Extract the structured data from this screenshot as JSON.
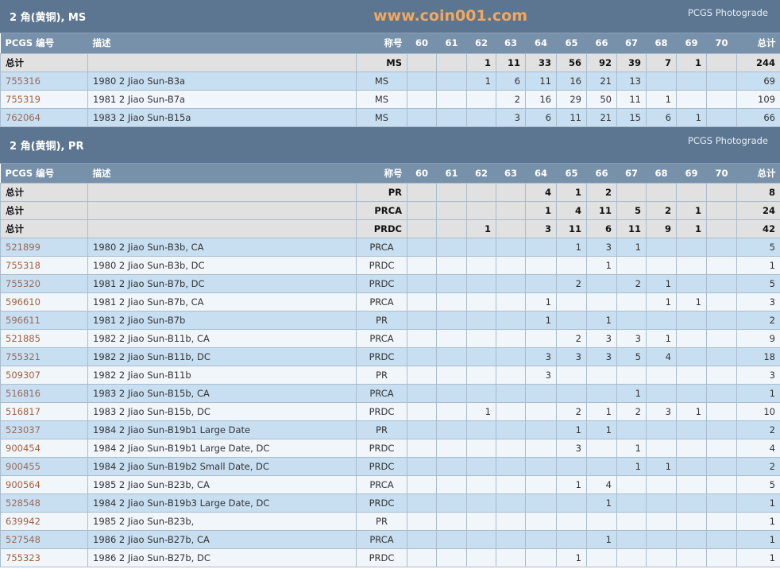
{
  "grade_headers": [
    "60",
    "61",
    "62",
    "63",
    "64",
    "65",
    "66",
    "67",
    "68",
    "69",
    "70"
  ],
  "columns": {
    "pcgs": "PCGS 编号",
    "desc": "描述",
    "designation": "称号",
    "total": "总计"
  },
  "tables": [
    {
      "title": "2 角(黄铜), MS",
      "photograde": "PCGS Photograde",
      "totals": [
        {
          "label": "总计",
          "designation": "MS",
          "grades": [
            null,
            null,
            1,
            11,
            33,
            56,
            92,
            39,
            7,
            1,
            null
          ],
          "total": 244
        }
      ],
      "rows": [
        {
          "pcgs": "755316",
          "desc": "1980 2 Jiao Sun-B3a",
          "designation": "MS",
          "grades": [
            null,
            null,
            1,
            6,
            11,
            16,
            21,
            13,
            null,
            null,
            null
          ],
          "total": 69
        },
        {
          "pcgs": "755319",
          "desc": "1981 2 Jiao Sun-B7a",
          "designation": "MS",
          "grades": [
            null,
            null,
            null,
            2,
            16,
            29,
            50,
            11,
            1,
            null,
            null
          ],
          "total": 109
        },
        {
          "pcgs": "762064",
          "desc": "1983 2 Jiao Sun-B15a",
          "designation": "MS",
          "grades": [
            null,
            null,
            null,
            3,
            6,
            11,
            21,
            15,
            6,
            1,
            null
          ],
          "total": 66
        }
      ]
    },
    {
      "title": "2 角(黄铜), PR",
      "photograde": "PCGS Photograde",
      "totals": [
        {
          "label": "总计",
          "designation": "PR",
          "grades": [
            null,
            null,
            null,
            null,
            4,
            1,
            2,
            null,
            null,
            null,
            null
          ],
          "total": 8
        },
        {
          "label": "总计",
          "designation": "PRCA",
          "grades": [
            null,
            null,
            null,
            null,
            1,
            4,
            11,
            5,
            2,
            1,
            null
          ],
          "total": 24
        },
        {
          "label": "总计",
          "designation": "PRDC",
          "grades": [
            null,
            null,
            1,
            null,
            3,
            11,
            6,
            11,
            9,
            1,
            null
          ],
          "total": 42
        }
      ],
      "rows": [
        {
          "pcgs": "521899",
          "desc": "1980 2 Jiao Sun-B3b, CA",
          "designation": "PRCA",
          "grades": [
            null,
            null,
            null,
            null,
            null,
            1,
            3,
            1,
            null,
            null,
            null
          ],
          "total": 5
        },
        {
          "pcgs": "755318",
          "desc": "1980 2 Jiao Sun-B3b, DC",
          "designation": "PRDC",
          "grades": [
            null,
            null,
            null,
            null,
            null,
            null,
            1,
            null,
            null,
            null,
            null
          ],
          "total": 1
        },
        {
          "pcgs": "755320",
          "desc": "1981 2 Jiao Sun-B7b, DC",
          "designation": "PRDC",
          "grades": [
            null,
            null,
            null,
            null,
            null,
            2,
            null,
            2,
            1,
            null,
            null
          ],
          "total": 5
        },
        {
          "pcgs": "596610",
          "desc": "1981 2 Jiao Sun-B7b, CA",
          "designation": "PRCA",
          "grades": [
            null,
            null,
            null,
            null,
            1,
            null,
            null,
            null,
            1,
            1,
            null
          ],
          "total": 3
        },
        {
          "pcgs": "596611",
          "desc": "1981 2 Jiao Sun-B7b",
          "designation": "PR",
          "grades": [
            null,
            null,
            null,
            null,
            1,
            null,
            1,
            null,
            null,
            null,
            null
          ],
          "total": 2
        },
        {
          "pcgs": "521885",
          "desc": "1982 2 Jiao Sun-B11b, CA",
          "designation": "PRCA",
          "grades": [
            null,
            null,
            null,
            null,
            null,
            2,
            3,
            3,
            1,
            null,
            null
          ],
          "total": 9
        },
        {
          "pcgs": "755321",
          "desc": "1982 2 Jiao Sun-B11b, DC",
          "designation": "PRDC",
          "grades": [
            null,
            null,
            null,
            null,
            3,
            3,
            3,
            5,
            4,
            null,
            null
          ],
          "total": 18
        },
        {
          "pcgs": "509307",
          "desc": "1982 2 Jiao Sun-B11b",
          "designation": "PR",
          "grades": [
            null,
            null,
            null,
            null,
            3,
            null,
            null,
            null,
            null,
            null,
            null
          ],
          "total": 3
        },
        {
          "pcgs": "516816",
          "desc": "1983 2 Jiao Sun-B15b, CA",
          "designation": "PRCA",
          "grades": [
            null,
            null,
            null,
            null,
            null,
            null,
            null,
            1,
            null,
            null,
            null
          ],
          "total": 1
        },
        {
          "pcgs": "516817",
          "desc": "1983 2 Jiao Sun-B15b, DC",
          "designation": "PRDC",
          "grades": [
            null,
            null,
            1,
            null,
            null,
            2,
            1,
            2,
            3,
            1,
            null
          ],
          "total": 10
        },
        {
          "pcgs": "523037",
          "desc": "1984 2 Jiao Sun-B19b1 Large Date",
          "designation": "PR",
          "grades": [
            null,
            null,
            null,
            null,
            null,
            1,
            1,
            null,
            null,
            null,
            null
          ],
          "total": 2
        },
        {
          "pcgs": "900454",
          "desc": "1984 2 Jiao Sun-B19b1 Large Date, DC",
          "designation": "PRDC",
          "grades": [
            null,
            null,
            null,
            null,
            null,
            3,
            null,
            1,
            null,
            null,
            null
          ],
          "total": 4
        },
        {
          "pcgs": "900455",
          "desc": "1984 2 Jiao Sun-B19b2 Small Date, DC",
          "designation": "PRDC",
          "grades": [
            null,
            null,
            null,
            null,
            null,
            null,
            null,
            1,
            1,
            null,
            null
          ],
          "total": 2
        },
        {
          "pcgs": "900564",
          "desc": "1985 2 Jiao Sun-B23b, CA",
          "designation": "PRCA",
          "grades": [
            null,
            null,
            null,
            null,
            null,
            1,
            4,
            null,
            null,
            null,
            null
          ],
          "total": 5
        },
        {
          "pcgs": "528548",
          "desc": "1984 2 Jiao Sun-B19b3 Large Date, DC",
          "designation": "PRDC",
          "grades": [
            null,
            null,
            null,
            null,
            null,
            null,
            1,
            null,
            null,
            null,
            null
          ],
          "total": 1
        },
        {
          "pcgs": "639942",
          "desc": "1985 2 Jiao Sun-B23b,",
          "designation": "PR",
          "grades": [
            null,
            null,
            null,
            null,
            null,
            null,
            null,
            null,
            null,
            null,
            null
          ],
          "total": 1
        },
        {
          "pcgs": "527548",
          "desc": "1986 2 Jiao Sun-B27b, CA",
          "designation": "PRCA",
          "grades": [
            null,
            null,
            null,
            null,
            null,
            null,
            1,
            null,
            null,
            null,
            null
          ],
          "total": 1
        },
        {
          "pcgs": "755323",
          "desc": "1986 2 Jiao Sun-B27b, DC",
          "designation": "PRDC",
          "grades": [
            null,
            null,
            null,
            null,
            null,
            1,
            null,
            null,
            null,
            null,
            null
          ],
          "total": 1
        }
      ]
    }
  ],
  "watermark": "www.coin001.com",
  "colors": {
    "title_bar": "#5c7590",
    "header_row": "#7891aa",
    "total_row": "#e1e1e1",
    "odd_row": "#c8dff2",
    "even_row": "#f1f6fb",
    "link": "#a4613e"
  }
}
